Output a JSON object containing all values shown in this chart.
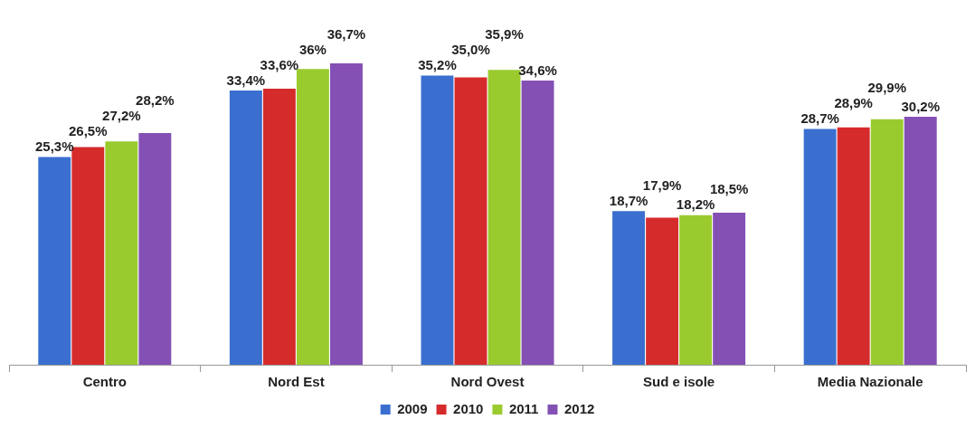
{
  "chart_data": {
    "type": "bar",
    "categories": [
      "Centro",
      "Nord Est",
      "Nord Ovest",
      "Sud e isole",
      "Media Nazionale"
    ],
    "series": [
      {
        "name": "2009",
        "color": "#3a6fd0",
        "values": [
          25.3,
          33.4,
          35.2,
          18.7,
          28.7
        ],
        "value_labels": [
          "25,3%",
          "33,4%",
          "35,2%",
          "18,7%",
          "28,7%"
        ]
      },
      {
        "name": "2010",
        "color": "#d62b2b",
        "values": [
          26.5,
          33.6,
          35.0,
          17.9,
          28.9
        ],
        "value_labels": [
          "26,5%",
          "33,6%",
          "35,0%",
          "17,9%",
          "28,9%"
        ]
      },
      {
        "name": "2011",
        "color": "#9acb2e",
        "values": [
          27.2,
          36,
          35.9,
          18.2,
          29.9
        ],
        "value_labels": [
          "27,2%",
          "36%",
          "35,9%",
          "18,2%",
          "29,9%"
        ]
      },
      {
        "name": "2012",
        "color": "#8450b4",
        "values": [
          28.2,
          36.7,
          34.6,
          18.5,
          30.2
        ],
        "value_labels": [
          "28,2%",
          "36,7%",
          "34,6%",
          "18,5%",
          "30,2%"
        ]
      }
    ],
    "legend": "bottom",
    "grid": false
  }
}
